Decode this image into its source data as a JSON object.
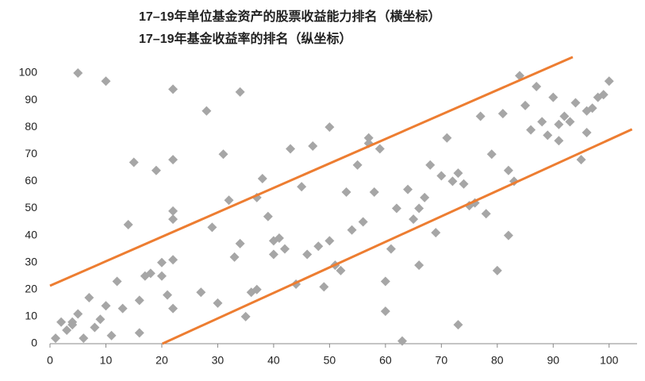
{
  "chart_data": {
    "type": "scatter",
    "title": "17–19年单位基金资产的股票收益能力排名（横坐标）",
    "subtitle": "17–19年基金收益率的排名（纵坐标）",
    "xlim": [
      0,
      105
    ],
    "ylim": [
      0,
      106
    ],
    "xticks": [
      0,
      10,
      20,
      30,
      40,
      50,
      60,
      70,
      80,
      90,
      100
    ],
    "yticks": [
      0,
      10,
      20,
      30,
      40,
      50,
      60,
      70,
      80,
      90,
      100
    ],
    "grid": false,
    "series": [
      {
        "color": "#a6a6a6",
        "x": [
          1,
          2,
          3,
          4,
          4,
          5,
          5,
          6,
          7,
          8,
          9,
          10,
          10,
          11,
          12,
          13,
          14,
          15,
          16,
          16,
          17,
          18,
          19,
          20,
          20,
          21,
          22,
          22,
          22,
          22,
          22,
          22,
          27,
          28,
          29,
          30,
          31,
          32,
          33,
          34,
          34,
          35,
          36,
          37,
          37,
          38,
          39,
          40,
          40,
          41,
          42,
          43,
          44,
          45,
          46,
          47,
          48,
          49,
          50,
          50,
          51,
          52,
          53,
          54,
          55,
          56,
          57,
          57,
          58,
          59,
          60,
          60,
          61,
          62,
          63,
          64,
          65,
          66,
          66,
          67,
          68,
          69,
          70,
          71,
          72,
          73,
          73,
          74,
          75,
          76,
          77,
          78,
          79,
          80,
          81,
          82,
          82,
          83,
          84,
          85,
          86,
          87,
          88,
          89,
          90,
          91,
          91,
          92,
          93,
          94,
          95,
          96,
          96,
          97,
          98,
          99,
          100
        ],
        "y": [
          2,
          8,
          5,
          7,
          8,
          11,
          100,
          2,
          17,
          6,
          9,
          14,
          97,
          3,
          23,
          13,
          44,
          67,
          4,
          16,
          25,
          26,
          64,
          25,
          30,
          18,
          13,
          31,
          46,
          49,
          68,
          94,
          19,
          86,
          43,
          15,
          70,
          53,
          32,
          37,
          93,
          10,
          19,
          20,
          54,
          61,
          47,
          38,
          33,
          39,
          35,
          72,
          22,
          58,
          33,
          73,
          36,
          21,
          38,
          80,
          29,
          27,
          56,
          42,
          66,
          45,
          74,
          76,
          56,
          72,
          12,
          23,
          35,
          50,
          1,
          57,
          46,
          50,
          29,
          54,
          66,
          41,
          62,
          76,
          60,
          7,
          63,
          59,
          51,
          52,
          84,
          48,
          70,
          27,
          85,
          64,
          40,
          60,
          99,
          88,
          79,
          95,
          82,
          77,
          91,
          75,
          81,
          84,
          82,
          89,
          68,
          86,
          78,
          87,
          91,
          92,
          97
        ]
      }
    ],
    "lines": [
      {
        "color": "#ed7d31",
        "x": [
          0,
          93.5
        ],
        "y": [
          21.4,
          105.9
        ]
      },
      {
        "color": "#ed7d31",
        "x": [
          20.1,
          104.1
        ],
        "y": [
          0,
          79.2
        ]
      }
    ]
  }
}
